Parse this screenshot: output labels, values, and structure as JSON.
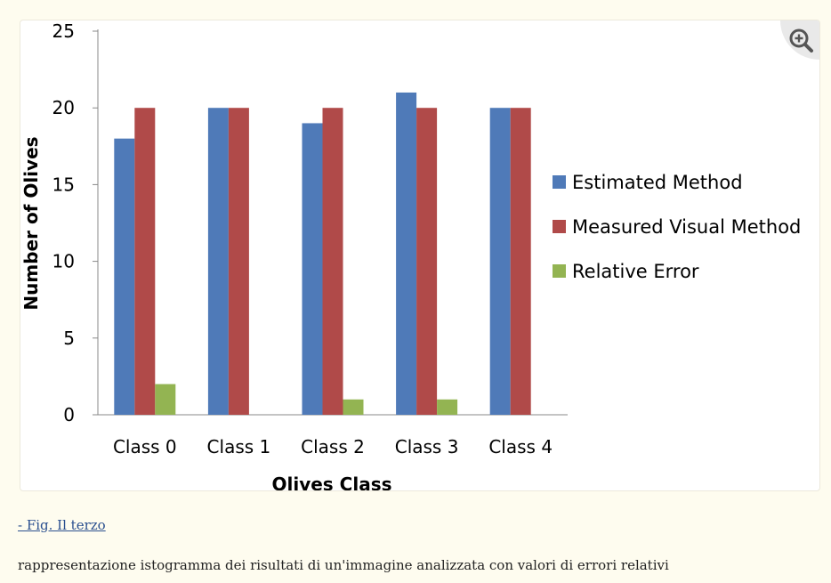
{
  "figure": {
    "link_text": "- Fig. Il terzo",
    "caption": "rappresentazione istogramma dei risultati di un'immagine analizzata con valori di errori relativi",
    "zoom_icon": "zoom-in-icon"
  },
  "chart_data": {
    "type": "bar",
    "categories": [
      "Class 0",
      "Class 1",
      "Class 2",
      "Class 3",
      "Class 4"
    ],
    "series": [
      {
        "name": "Estimated Method",
        "values": [
          18,
          20,
          19,
          21,
          20
        ],
        "color": "#4f7ab8"
      },
      {
        "name": "Measured Visual Method",
        "values": [
          20,
          20,
          20,
          20,
          20
        ],
        "color": "#b04a49"
      },
      {
        "name": "Relative Error",
        "values": [
          2,
          0,
          1,
          1,
          0
        ],
        "color": "#93b452"
      }
    ],
    "xlabel": "Olives Class",
    "ylabel": "Number  of Olives",
    "ylim": [
      0,
      25
    ],
    "yticks": [
      "0",
      "5",
      "10",
      "15",
      "20",
      "25"
    ],
    "grid": false,
    "legend_position": "right"
  }
}
